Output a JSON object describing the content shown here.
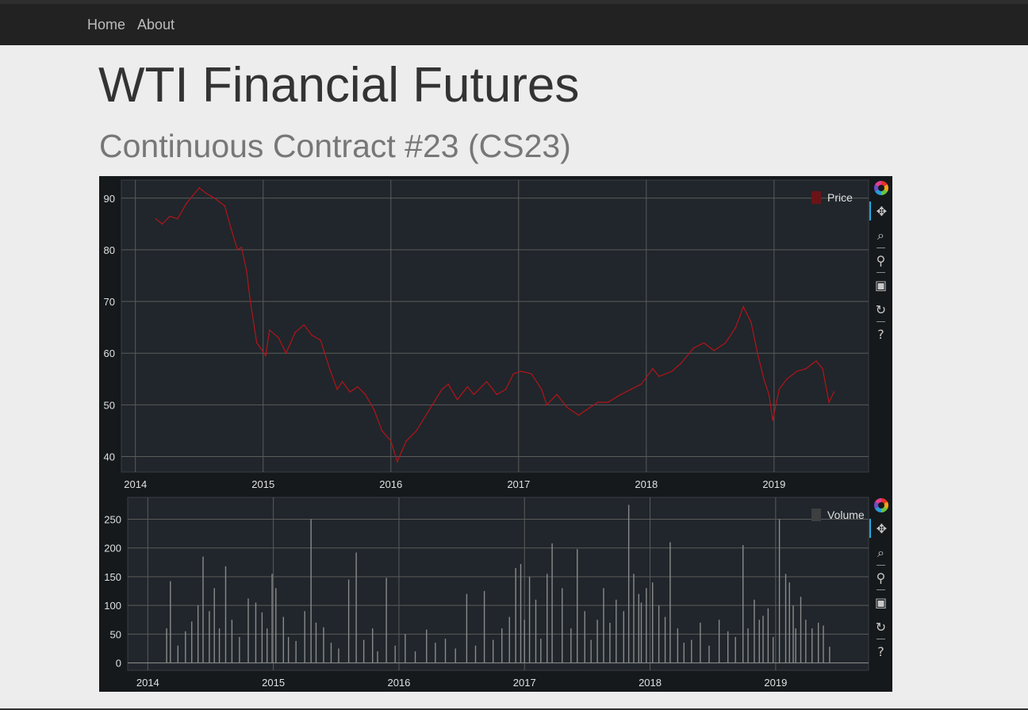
{
  "nav": {
    "home": "Home",
    "about": "About"
  },
  "page": {
    "title": "WTI Financial Futures",
    "subtitle": "Continuous Contract #23 (CS23)"
  },
  "toolbar": {
    "icons": [
      "bokeh-logo-icon",
      "pan-icon",
      "box-zoom-icon",
      "wheel-zoom-icon",
      "save-icon",
      "reset-icon",
      "help-icon"
    ]
  },
  "colors": {
    "background": "#15191c",
    "plot_background": "#20262b",
    "grid": "#5b5b5b",
    "price_line": "#b3141b",
    "volume_bar": "#8a8a8a",
    "text": "#e0e0e0"
  },
  "chart_data": [
    {
      "type": "line",
      "legend": [
        "Price"
      ],
      "legend_position": "top-right",
      "grid": true,
      "xlim": [
        2013.89,
        2019.74
      ],
      "ylim": [
        37,
        93.5
      ],
      "x_ticks": [
        2014,
        2015,
        2016,
        2017,
        2018,
        2019
      ],
      "x_tick_labels": [
        "2014",
        "2015",
        "2016",
        "2017",
        "2018",
        "2019"
      ],
      "y_ticks": [
        40,
        50,
        60,
        70,
        80,
        90
      ],
      "y_tick_labels": [
        "40",
        "50",
        "60",
        "70",
        "80",
        "90"
      ],
      "series": [
        {
          "name": "Price",
          "x": [
            2014.16,
            2014.21,
            2014.27,
            2014.33,
            2014.4,
            2014.45,
            2014.5,
            2014.55,
            2014.62,
            2014.7,
            2014.75,
            2014.8,
            2014.83,
            2014.87,
            2014.9,
            2014.95,
            2014.98,
            2015.02,
            2015.05,
            2015.12,
            2015.18,
            2015.25,
            2015.32,
            2015.38,
            2015.45,
            2015.52,
            2015.58,
            2015.62,
            2015.68,
            2015.74,
            2015.8,
            2015.87,
            2015.93,
            2016.0,
            2016.05,
            2016.12,
            2016.2,
            2016.3,
            2016.4,
            2016.45,
            2016.52,
            2016.6,
            2016.65,
            2016.75,
            2016.83,
            2016.9,
            2016.96,
            2017.02,
            2017.1,
            2017.18,
            2017.22,
            2017.3,
            2017.38,
            2017.47,
            2017.53,
            2017.62,
            2017.7,
            2017.8,
            2017.88,
            2017.96,
            2018.05,
            2018.1,
            2018.2,
            2018.27,
            2018.37,
            2018.45,
            2018.53,
            2018.62,
            2018.7,
            2018.76,
            2018.82,
            2018.87,
            2018.92,
            2018.96,
            2018.99,
            2019.04,
            2019.1,
            2019.18,
            2019.25,
            2019.33,
            2019.38,
            2019.43,
            2019.47
          ],
          "values": [
            86,
            85,
            86.5,
            86,
            89,
            90.5,
            92,
            91,
            90,
            88.5,
            84,
            80,
            80.5,
            76,
            70,
            62,
            61,
            59.5,
            64.5,
            63,
            60,
            64,
            65.5,
            63.5,
            62.5,
            57,
            53,
            54.5,
            52.5,
            53.5,
            52,
            49,
            45,
            43,
            39,
            43,
            45,
            49,
            53,
            54,
            51,
            53.5,
            52,
            54.5,
            52,
            53,
            56,
            56.5,
            56,
            53,
            50,
            52,
            49.5,
            48,
            49,
            50.5,
            50.5,
            52,
            53,
            54,
            57,
            55.5,
            56.5,
            58,
            61,
            62,
            60.5,
            62,
            65,
            69,
            66,
            60,
            55,
            52,
            47,
            53,
            55,
            56.5,
            57,
            58.5,
            57,
            50.5,
            52.5
          ]
        }
      ]
    },
    {
      "type": "bar",
      "legend": [
        "Volume"
      ],
      "legend_position": "top-right",
      "grid": true,
      "xlim": [
        2013.84,
        2019.74
      ],
      "ylim": [
        -13,
        288
      ],
      "x_ticks": [
        2014,
        2015,
        2016,
        2017,
        2018,
        2019
      ],
      "x_tick_labels": [
        "2014",
        "2015",
        "2016",
        "2017",
        "2018",
        "2019"
      ],
      "y_ticks": [
        0,
        50,
        100,
        150,
        200,
        250
      ],
      "y_tick_labels": [
        "0",
        "50",
        "100",
        "150",
        "200",
        "250"
      ],
      "series": [
        {
          "name": "Volume",
          "x": [
            2014.15,
            2014.18,
            2014.24,
            2014.3,
            2014.35,
            2014.4,
            2014.44,
            2014.49,
            2014.53,
            2014.57,
            2014.62,
            2014.67,
            2014.73,
            2014.8,
            2014.86,
            2014.91,
            2014.95,
            2014.99,
            2015.02,
            2015.08,
            2015.12,
            2015.18,
            2015.25,
            2015.3,
            2015.34,
            2015.4,
            2015.46,
            2015.52,
            2015.6,
            2015.66,
            2015.72,
            2015.79,
            2015.83,
            2015.9,
            2015.97,
            2016.05,
            2016.13,
            2016.22,
            2016.29,
            2016.37,
            2016.45,
            2016.54,
            2016.61,
            2016.68,
            2016.75,
            2016.82,
            2016.88,
            2016.93,
            2016.97,
            2017.0,
            2017.04,
            2017.09,
            2017.13,
            2017.18,
            2017.22,
            2017.3,
            2017.37,
            2017.42,
            2017.48,
            2017.53,
            2017.58,
            2017.63,
            2017.68,
            2017.73,
            2017.79,
            2017.83,
            2017.87,
            2017.91,
            2017.93,
            2017.97,
            2018.02,
            2018.07,
            2018.12,
            2018.16,
            2018.22,
            2018.27,
            2018.33,
            2018.4,
            2018.47,
            2018.55,
            2018.62,
            2018.68,
            2018.74,
            2018.78,
            2018.83,
            2018.87,
            2018.9,
            2018.94,
            2018.98,
            2019.03,
            2019.08,
            2019.11,
            2019.14,
            2019.16,
            2019.2,
            2019.24,
            2019.29,
            2019.34,
            2019.38,
            2019.43
          ],
          "values": [
            60,
            142,
            30,
            55,
            72,
            100,
            185,
            90,
            130,
            60,
            168,
            75,
            45,
            112,
            105,
            88,
            60,
            155,
            130,
            80,
            45,
            38,
            90,
            250,
            70,
            62,
            35,
            25,
            145,
            192,
            40,
            60,
            20,
            148,
            30,
            50,
            20,
            58,
            35,
            42,
            25,
            120,
            30,
            125,
            40,
            60,
            80,
            165,
            172,
            75,
            150,
            110,
            42,
            155,
            208,
            130,
            60,
            198,
            90,
            40,
            75,
            130,
            70,
            110,
            90,
            275,
            155,
            120,
            105,
            130,
            140,
            100,
            80,
            210,
            60,
            35,
            40,
            70,
            30,
            75,
            55,
            45,
            205,
            60,
            110,
            75,
            82,
            95,
            45,
            250,
            155,
            140,
            100,
            60,
            115,
            75,
            60,
            70,
            65,
            28
          ]
        }
      ]
    }
  ]
}
